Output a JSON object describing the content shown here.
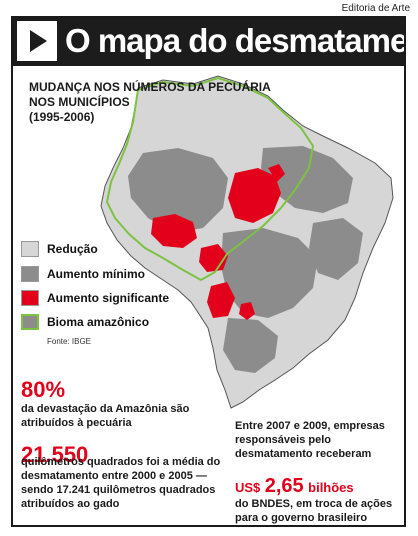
{
  "credit": "Editoria de Arte",
  "header": {
    "title": "O mapa do desmatamento",
    "icon": "play-icon"
  },
  "subtitle": {
    "line1": "MUDANÇA NOS NÚMEROS DA PECUÁRIA",
    "line2": "NOS MUNICÍPIOS",
    "line3": "(1995-2006)"
  },
  "legend": {
    "items": [
      {
        "label": "Redução",
        "color": "#d6d6d6"
      },
      {
        "label": "Aumento mínimo",
        "color": "#8c8c8c"
      },
      {
        "label": "Aumento significante",
        "color": "#e2001a"
      },
      {
        "label": "Bioma amazônico",
        "color": "#7dc242"
      }
    ],
    "source": "Fonte: IBGE"
  },
  "stats": {
    "s1": {
      "value": "80%",
      "text": "da devastação da Amazônia são atribuídos à pecuária"
    },
    "s2": {
      "value": "21.550",
      "text": "quilômetros quadrados foi a média do desmatamento entre 2000 e 2005 — sendo 17.241 quilômetros quadrados atribuídos ao gado"
    },
    "s3": {
      "intro": "Entre 2007 e 2009, empresas responsáveis pelo desmatamento receberam",
      "currency": "US$",
      "number": "2,65",
      "unit": "bilhões",
      "outro": "do BNDES, em troca de ações para o governo brasileiro"
    }
  }
}
